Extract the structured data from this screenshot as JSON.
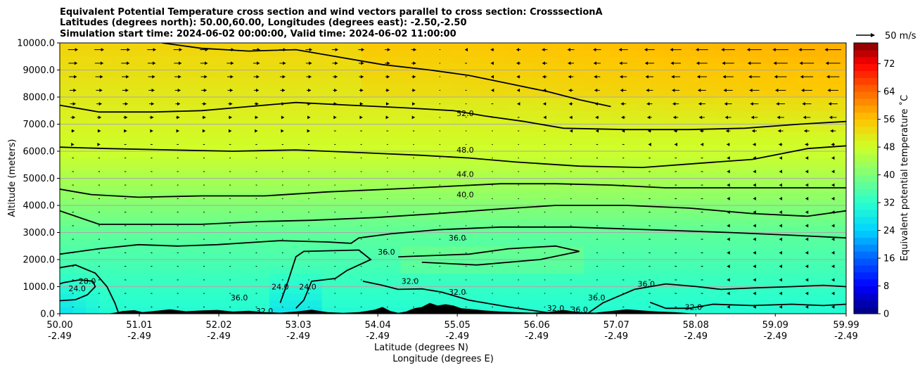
{
  "chart_data": {
    "type": "heatmap",
    "title_lines": [
      "Equivalent Potential Temperature cross section and wind vectors parallel to cross section: CrosssectionA",
      "Latitudes (degrees north): 50.00,60.00, Longitudes (degrees east): -2.50,-2.50",
      "Simulation start time: 2024-06-02 00:00:00, Valid time: 2024-06-02 11:00:00"
    ],
    "xlabel": "Latitude (degrees N)",
    "xlabel2": "Longitude (degrees E)",
    "ylabel": "Altitude (meters)",
    "xlim": [
      50.0,
      59.99
    ],
    "ylim": [
      0,
      10000
    ],
    "x_ticks": [
      {
        "lat": 50.0,
        "lat_label": "50.00",
        "lon_label": "-2.49"
      },
      {
        "lat": 51.01,
        "lat_label": "51.01",
        "lon_label": "-2.49"
      },
      {
        "lat": 52.02,
        "lat_label": "52.02",
        "lon_label": "-2.49"
      },
      {
        "lat": 53.03,
        "lat_label": "53.03",
        "lon_label": "-2.49"
      },
      {
        "lat": 54.04,
        "lat_label": "54.04",
        "lon_label": "-2.49"
      },
      {
        "lat": 55.05,
        "lat_label": "55.05",
        "lon_label": "-2.49"
      },
      {
        "lat": 56.06,
        "lat_label": "56.06",
        "lon_label": "-2.49"
      },
      {
        "lat": 57.07,
        "lat_label": "57.07",
        "lon_label": "-2.49"
      },
      {
        "lat": 58.08,
        "lat_label": "58.08",
        "lon_label": "-2.49"
      },
      {
        "lat": 59.09,
        "lat_label": "59.09",
        "lon_label": "-2.49"
      },
      {
        "lat": 59.99,
        "lat_label": "59.99",
        "lon_label": "-2.49"
      }
    ],
    "y_ticks": [
      {
        "v": 0,
        "label": "0.0"
      },
      {
        "v": 1000,
        "label": "1000.0"
      },
      {
        "v": 2000,
        "label": "2000.0"
      },
      {
        "v": 3000,
        "label": "3000.0"
      },
      {
        "v": 4000,
        "label": "4000.0"
      },
      {
        "v": 5000,
        "label": "5000.0"
      },
      {
        "v": 6000,
        "label": "6000.0"
      },
      {
        "v": 7000,
        "label": "7000.0"
      },
      {
        "v": 8000,
        "label": "8000.0"
      },
      {
        "v": 9000,
        "label": "9000.0"
      },
      {
        "v": 10000,
        "label": "10000.0"
      }
    ],
    "grid": "horizontal",
    "contour_lines": [
      {
        "label": "24.0",
        "points": [
          [
            50.0,
            480
          ],
          [
            50.2,
            520
          ],
          [
            50.35,
            700
          ],
          [
            50.45,
            1000
          ],
          [
            50.42,
            1200
          ],
          [
            50.25,
            1250
          ],
          [
            50.05,
            1150
          ],
          [
            50.0,
            1100
          ]
        ]
      },
      {
        "label": "28.0",
        "points": [
          [
            50.0,
            1700
          ],
          [
            50.2,
            1800
          ],
          [
            50.45,
            1500
          ],
          [
            50.6,
            1000
          ],
          [
            50.7,
            400
          ],
          [
            50.75,
            0
          ]
        ]
      },
      {
        "label": "32.0",
        "points": [
          [
            53.85,
            1200
          ],
          [
            54.1,
            1050
          ],
          [
            54.3,
            900
          ],
          [
            54.6,
            920
          ],
          [
            54.85,
            800
          ],
          [
            55.2,
            500
          ],
          [
            55.7,
            250
          ],
          [
            56.3,
            0
          ]
        ]
      },
      {
        "label": "32.0",
        "points": [
          [
            57.5,
            420
          ],
          [
            57.7,
            200
          ],
          [
            58.0,
            200
          ],
          [
            58.3,
            350
          ],
          [
            58.8,
            300
          ],
          [
            59.3,
            350
          ],
          [
            59.7,
            300
          ],
          [
            59.99,
            350
          ]
        ]
      },
      {
        "label": "36.0",
        "points": [
          [
            50.0,
            2200
          ],
          [
            50.5,
            2400
          ],
          [
            51.0,
            2550
          ],
          [
            51.5,
            2500
          ],
          [
            52.0,
            2550
          ],
          [
            52.8,
            2700
          ],
          [
            53.4,
            2650
          ],
          [
            53.7,
            2600
          ],
          [
            53.8,
            2800
          ],
          [
            54.2,
            2950
          ],
          [
            54.8,
            3100
          ],
          [
            55.6,
            3200
          ],
          [
            56.5,
            3200
          ],
          [
            57.5,
            3100
          ],
          [
            58.5,
            3000
          ],
          [
            59.3,
            2900
          ],
          [
            59.99,
            2800
          ]
        ]
      },
      {
        "label": "36.0",
        "points": [
          [
            52.8,
            400
          ],
          [
            52.9,
            1200
          ],
          [
            53.0,
            2100
          ],
          [
            53.1,
            2300
          ],
          [
            53.8,
            2350
          ],
          [
            53.95,
            2000
          ],
          [
            53.65,
            1600
          ],
          [
            53.5,
            1300
          ],
          [
            53.2,
            1200
          ],
          [
            53.1,
            500
          ],
          [
            53.0,
            200
          ]
        ]
      },
      {
        "label": "36.0",
        "points": [
          [
            54.3,
            2100
          ],
          [
            55.2,
            2200
          ],
          [
            55.7,
            2400
          ],
          [
            56.3,
            2500
          ],
          [
            56.6,
            2300
          ],
          [
            56.1,
            2000
          ],
          [
            55.3,
            1800
          ],
          [
            54.6,
            1900
          ]
        ]
      },
      {
        "label": "36.0",
        "points": [
          [
            56.7,
            0
          ],
          [
            56.9,
            400
          ],
          [
            57.3,
            900
          ],
          [
            57.7,
            1100
          ],
          [
            58.1,
            1000
          ],
          [
            58.4,
            900
          ],
          [
            58.8,
            950
          ],
          [
            59.3,
            1000
          ],
          [
            59.7,
            1050
          ],
          [
            59.99,
            1000
          ]
        ]
      },
      {
        "label": "40.0",
        "points": [
          [
            50.0,
            3800
          ],
          [
            50.5,
            3300
          ],
          [
            51.0,
            3300
          ],
          [
            51.8,
            3300
          ],
          [
            52.5,
            3400
          ],
          [
            53.2,
            3450
          ],
          [
            54.0,
            3550
          ],
          [
            54.8,
            3700
          ],
          [
            55.5,
            3850
          ],
          [
            56.3,
            4000
          ],
          [
            57.2,
            4000
          ],
          [
            58.0,
            3900
          ],
          [
            58.8,
            3700
          ],
          [
            59.5,
            3600
          ],
          [
            59.99,
            3800
          ]
        ]
      },
      {
        "label": "44.0",
        "points": [
          [
            50.0,
            4600
          ],
          [
            50.4,
            4400
          ],
          [
            51.0,
            4300
          ],
          [
            51.8,
            4350
          ],
          [
            52.6,
            4350
          ],
          [
            53.4,
            4500
          ],
          [
            54.2,
            4600
          ],
          [
            54.9,
            4700
          ],
          [
            55.6,
            4800
          ],
          [
            56.3,
            4800
          ],
          [
            57.0,
            4750
          ],
          [
            57.7,
            4650
          ],
          [
            58.4,
            4650
          ],
          [
            59.2,
            4650
          ],
          [
            59.99,
            4650
          ]
        ]
      },
      {
        "label": "48.0",
        "points": [
          [
            50.0,
            6150
          ],
          [
            50.6,
            6100
          ],
          [
            51.4,
            6050
          ],
          [
            52.2,
            6000
          ],
          [
            53.0,
            6050
          ],
          [
            53.8,
            5950
          ],
          [
            54.6,
            5850
          ],
          [
            55.2,
            5750
          ],
          [
            55.8,
            5600
          ],
          [
            56.6,
            5450
          ],
          [
            57.4,
            5400
          ],
          [
            58.1,
            5550
          ],
          [
            58.8,
            5700
          ],
          [
            59.5,
            6100
          ],
          [
            59.99,
            6200
          ]
        ]
      },
      {
        "label": "52.0",
        "points": [
          [
            50.0,
            7700
          ],
          [
            50.5,
            7450
          ],
          [
            51.2,
            7450
          ],
          [
            51.8,
            7500
          ],
          [
            52.4,
            7650
          ],
          [
            53.0,
            7800
          ],
          [
            53.7,
            7700
          ],
          [
            54.4,
            7600
          ],
          [
            55.0,
            7500
          ],
          [
            55.4,
            7300
          ],
          [
            55.9,
            7100
          ],
          [
            56.4,
            6850
          ],
          [
            57.2,
            6800
          ],
          [
            58.0,
            6800
          ],
          [
            58.7,
            6850
          ],
          [
            59.4,
            7000
          ],
          [
            59.99,
            7100
          ]
        ]
      },
      {
        "label": "",
        "points": [
          [
            51.3,
            10000
          ],
          [
            51.8,
            9800
          ],
          [
            52.4,
            9700
          ],
          [
            53.0,
            9750
          ],
          [
            53.5,
            9500
          ],
          [
            54.1,
            9200
          ],
          [
            54.7,
            9000
          ],
          [
            55.2,
            8800
          ],
          [
            55.7,
            8500
          ],
          [
            56.2,
            8200
          ],
          [
            56.6,
            7900
          ],
          [
            57.0,
            7650
          ]
        ]
      }
    ],
    "contour_label_positions": [
      {
        "label": "52.0",
        "lat": 55.15,
        "alt": 7350
      },
      {
        "label": "48.0",
        "lat": 55.15,
        "alt": 6000
      },
      {
        "label": "44.0",
        "lat": 55.15,
        "alt": 5100
      },
      {
        "label": "40.0",
        "lat": 55.15,
        "alt": 4350
      },
      {
        "label": "36.0",
        "lat": 55.05,
        "alt": 2750
      },
      {
        "label": "36.0",
        "lat": 54.15,
        "alt": 2230
      },
      {
        "label": "32.0",
        "lat": 54.45,
        "alt": 1150
      },
      {
        "label": "32.0",
        "lat": 55.05,
        "alt": 750
      },
      {
        "label": "28.0",
        "lat": 50.35,
        "alt": 1150
      },
      {
        "label": "24.0",
        "lat": 50.22,
        "alt": 880
      },
      {
        "label": "24.0",
        "lat": 52.8,
        "alt": 950
      },
      {
        "label": "24.0",
        "lat": 53.15,
        "alt": 950
      },
      {
        "label": "36.0",
        "lat": 52.28,
        "alt": 550
      },
      {
        "label": "36.0",
        "lat": 56.82,
        "alt": 550
      },
      {
        "label": "36.0",
        "lat": 57.45,
        "alt": 1050
      },
      {
        "label": "32.0",
        "lat": 58.05,
        "alt": 200
      },
      {
        "label": "32.0",
        "lat": 56.3,
        "alt": 150
      },
      {
        "label": "32.0",
        "lat": 52.6,
        "alt": 50
      },
      {
        "label": "36.0",
        "lat": 56.6,
        "alt": 100
      }
    ],
    "terrain": [
      [
        50.0,
        0
      ],
      [
        50.6,
        0
      ],
      [
        50.7,
        40
      ],
      [
        50.8,
        100
      ],
      [
        50.95,
        130
      ],
      [
        51.05,
        60
      ],
      [
        51.2,
        100
      ],
      [
        51.4,
        160
      ],
      [
        51.6,
        90
      ],
      [
        51.8,
        120
      ],
      [
        52.0,
        140
      ],
      [
        52.2,
        80
      ],
      [
        52.4,
        110
      ],
      [
        52.6,
        60
      ],
      [
        52.8,
        40
      ],
      [
        53.0,
        80
      ],
      [
        53.2,
        150
      ],
      [
        53.4,
        60
      ],
      [
        53.6,
        30
      ],
      [
        53.8,
        60
      ],
      [
        54.0,
        150
      ],
      [
        54.1,
        250
      ],
      [
        54.2,
        100
      ],
      [
        54.3,
        30
      ],
      [
        54.4,
        80
      ],
      [
        54.5,
        200
      ],
      [
        54.6,
        250
      ],
      [
        54.7,
        400
      ],
      [
        54.8,
        300
      ],
      [
        54.9,
        350
      ],
      [
        55.0,
        300
      ],
      [
        55.1,
        200
      ],
      [
        55.2,
        180
      ],
      [
        55.3,
        150
      ],
      [
        55.4,
        120
      ],
      [
        55.6,
        80
      ],
      [
        55.8,
        60
      ],
      [
        56.0,
        40
      ],
      [
        56.2,
        60
      ],
      [
        56.4,
        140
      ],
      [
        56.6,
        60
      ],
      [
        56.8,
        40
      ],
      [
        57.0,
        100
      ],
      [
        57.2,
        160
      ],
      [
        57.4,
        120
      ],
      [
        57.6,
        80
      ],
      [
        57.8,
        60
      ],
      [
        58.0,
        20
      ],
      [
        58.2,
        0
      ],
      [
        59.99,
        0
      ]
    ],
    "colorbar": {
      "label": "Equivalent potential temperature ˚C",
      "min": 0,
      "max": 78,
      "ticks": [
        0,
        8,
        16,
        24,
        32,
        40,
        48,
        56,
        64,
        72
      ]
    },
    "wind_key": {
      "label": "50 m/s"
    },
    "colors": {
      "c0": "#00007f",
      "c8": "#0000ff",
      "c16": "#0060ff",
      "c24": "#00d4ff",
      "c32": "#29ffce",
      "c40": "#7dff7a",
      "c48": "#ceff29",
      "c56": "#ffc400",
      "c64": "#ff6800",
      "c72": "#ff0000",
      "c78": "#800000"
    }
  }
}
